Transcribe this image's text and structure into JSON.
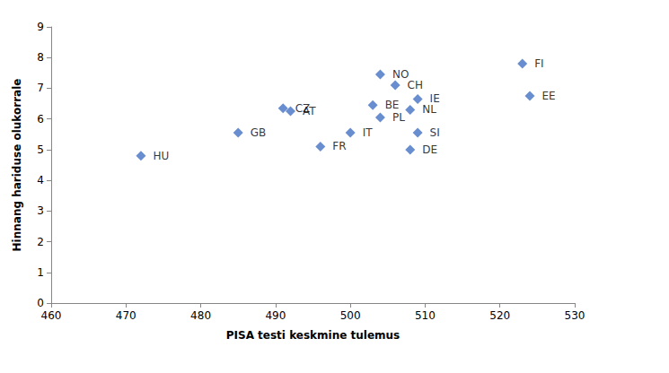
{
  "chart_data": {
    "type": "scatter",
    "xlabel": "PISA testi keskmine tulemus",
    "ylabel": "Hinnang hariduse olukorrale",
    "x": [
      472,
      485,
      491,
      492,
      496,
      500,
      503,
      504,
      504,
      506,
      508,
      508,
      509,
      509,
      523,
      524
    ],
    "values": [
      4.8,
      5.55,
      6.35,
      6.25,
      5.1,
      5.55,
      6.45,
      7.45,
      6.05,
      7.1,
      6.3,
      5.0,
      6.65,
      5.55,
      7.8,
      6.75
    ],
    "labels": [
      "HU",
      "GB",
      "CZ",
      "AT",
      "FR",
      "IT",
      "BE",
      "NO",
      "PL",
      "CH",
      "NL",
      "DE",
      "IE",
      "SI",
      "FI",
      "EE"
    ],
    "color": "#4472c4",
    "marker": "diamond",
    "xlim": [
      460,
      530
    ],
    "xticks": [
      460,
      470,
      480,
      490,
      500,
      510,
      520,
      530
    ],
    "ylim": [
      0,
      9
    ],
    "yticks": [
      0,
      1,
      2,
      3,
      4,
      5,
      6,
      7,
      8,
      9
    ],
    "grid": false
  }
}
